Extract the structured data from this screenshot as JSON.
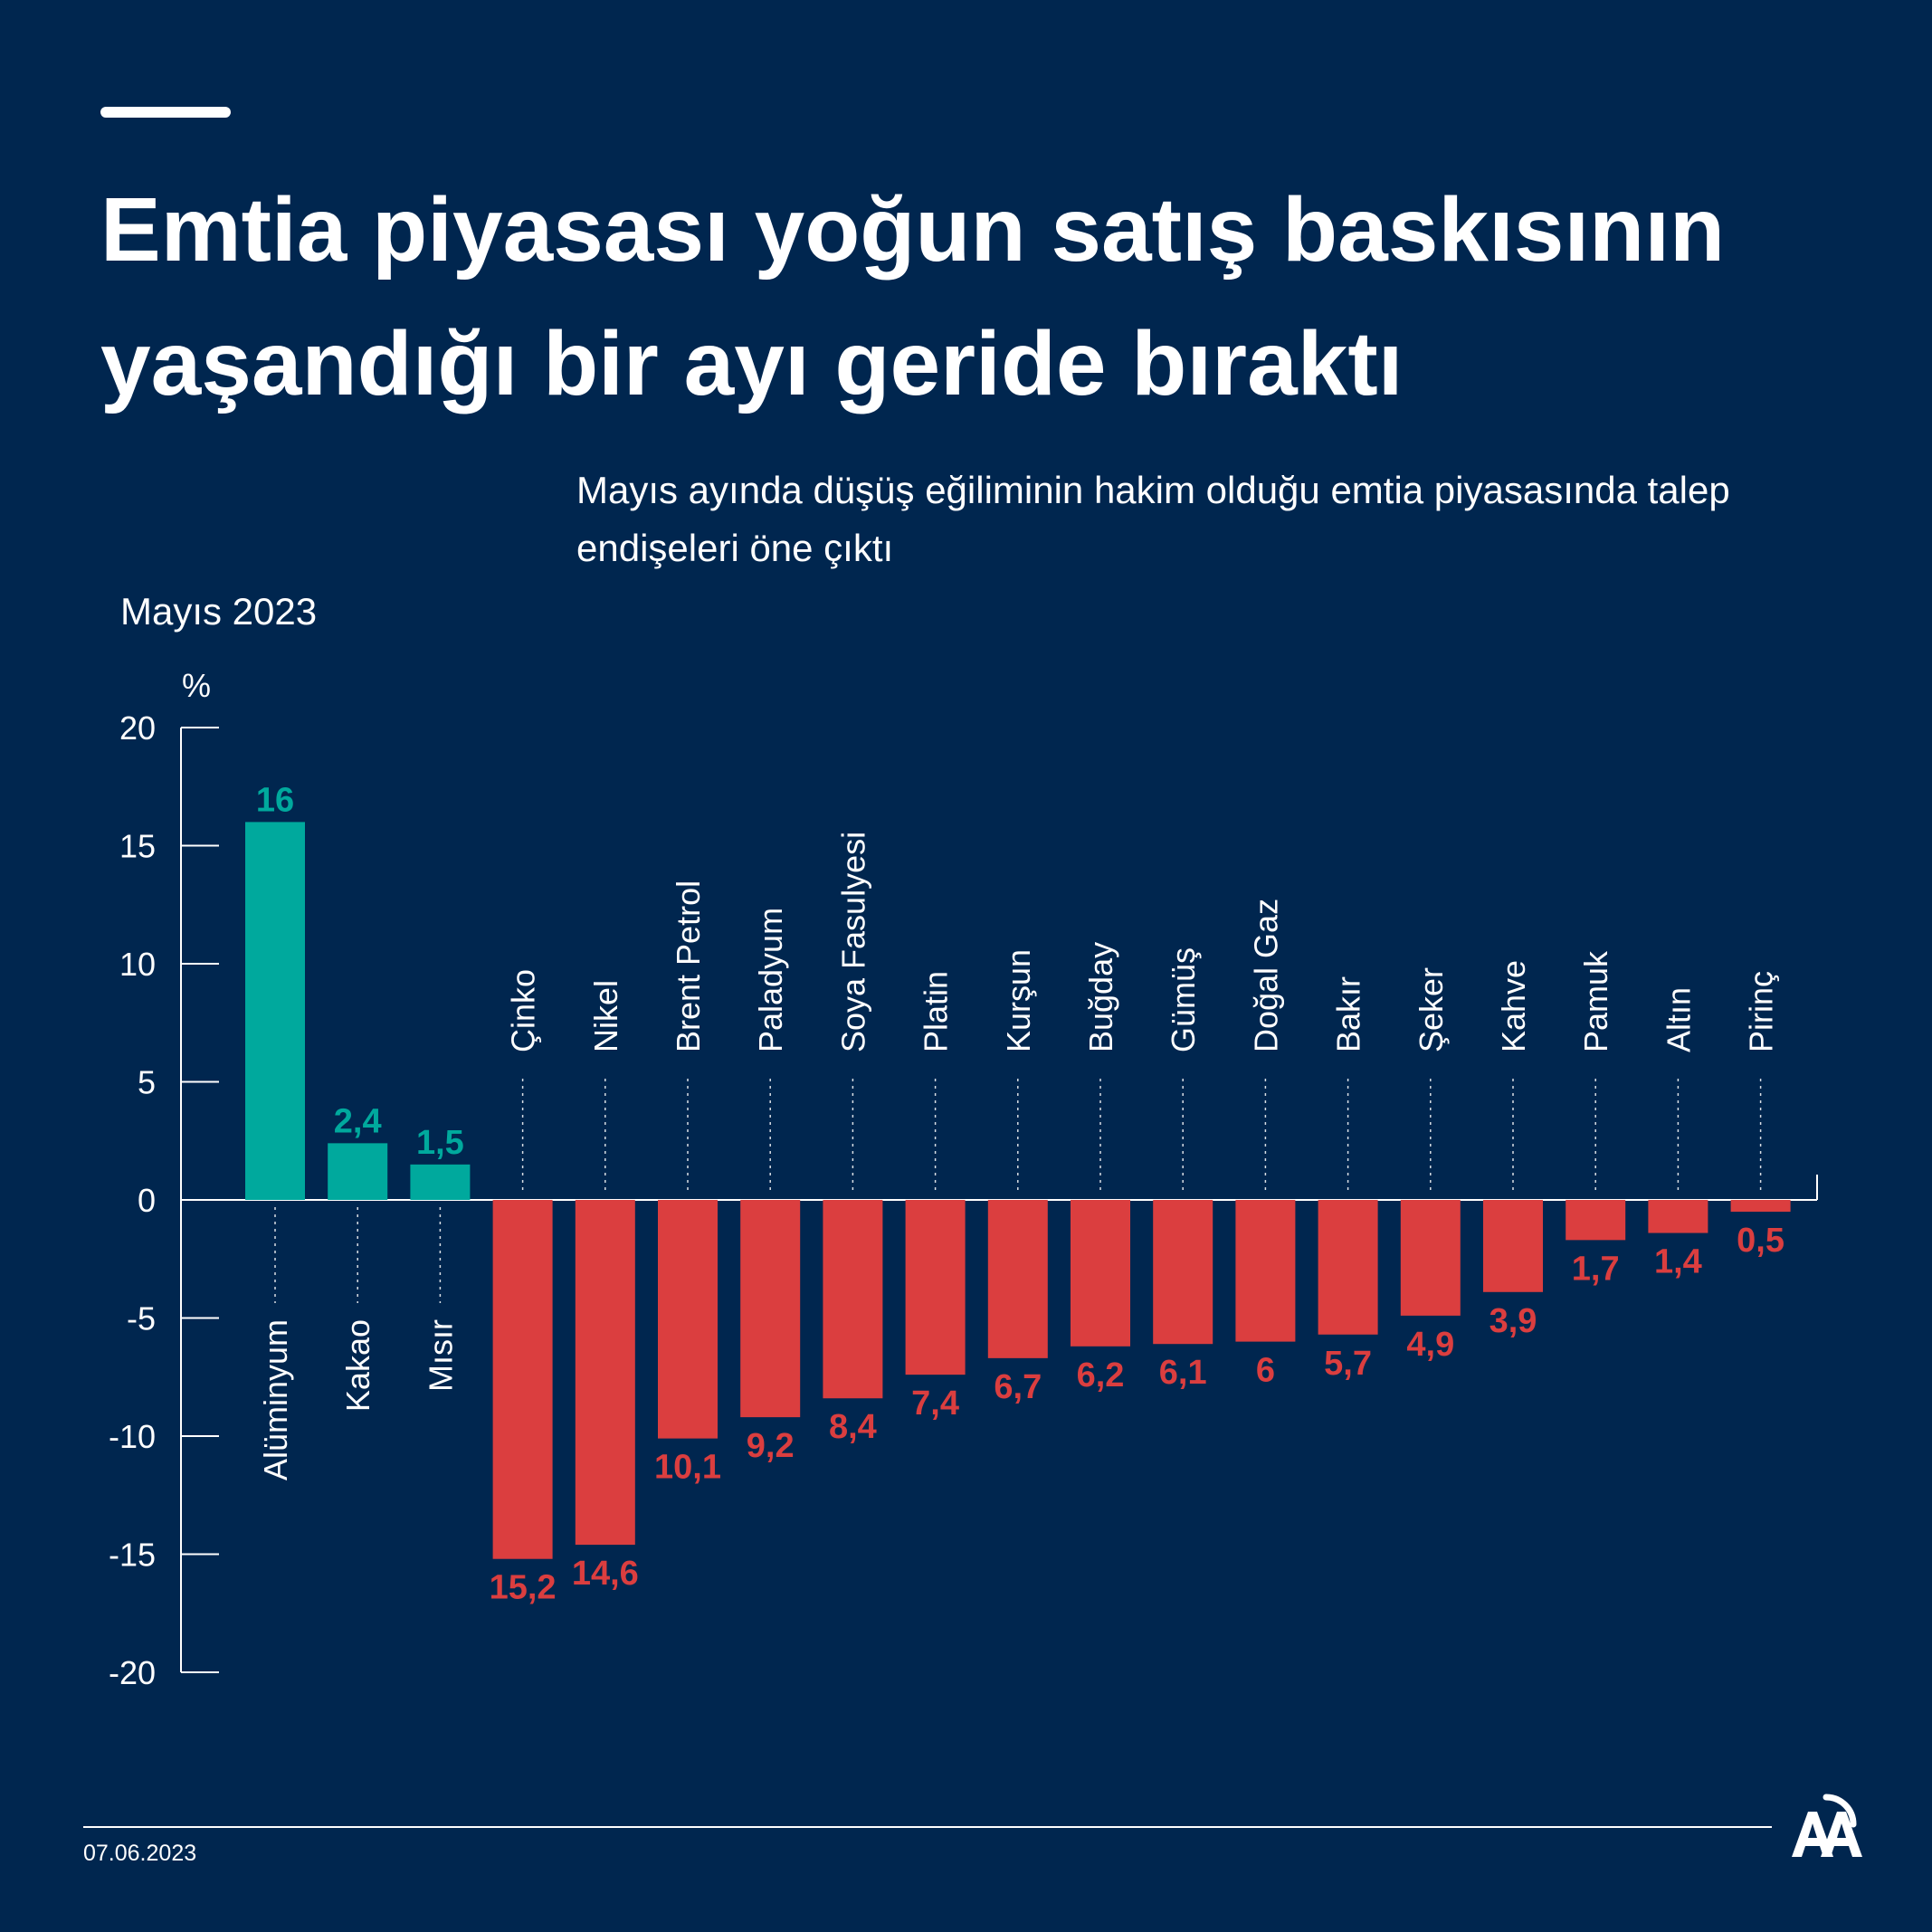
{
  "title": "Emtia piyasası yoğun satış baskısının yaşandığı bir ayı geride bıraktı",
  "subtitle": "Mayıs ayında düşüş eğiliminin hakim olduğu emtia piyasasında talep endişeleri öne çıktı",
  "footer": {
    "date": "07.06.2023"
  },
  "logo": {
    "icon": "aa-logo-icon",
    "text": "AA"
  },
  "colors": {
    "background": "#00264F",
    "positive": "#00A99D",
    "negative": "#DB3E3F",
    "text": "#FFFFFF"
  },
  "chart_data": {
    "type": "bar",
    "title": "",
    "period": "Mayıs 2023",
    "ylabel": "%",
    "xlabel": "",
    "ylim": [
      -20,
      20
    ],
    "yticks": [
      20,
      15,
      10,
      5,
      0,
      -5,
      -10,
      -15,
      -20
    ],
    "categories": [
      "Alüminyum",
      "Kakao",
      "Mısır",
      "Çinko",
      "Nikel",
      "Brent Petrol",
      "Paladyum",
      "Soya Fasulyesi",
      "Platin",
      "Kurşun",
      "Buğday",
      "Gümüş",
      "Doğal Gaz",
      "Bakır",
      "Şeker",
      "Kahve",
      "Pamuk",
      "Altın",
      "Pirinç"
    ],
    "values": [
      16,
      2.4,
      1.5,
      -15.2,
      -14.6,
      -10.1,
      -9.2,
      -8.4,
      -7.4,
      -6.7,
      -6.2,
      -6.1,
      -6,
      -5.7,
      -4.9,
      -3.9,
      -1.7,
      -1.4,
      -0.5
    ],
    "value_labels": [
      "16",
      "2,4",
      "1,5",
      "15,2",
      "14,6",
      "10,1",
      "9,2",
      "8,4",
      "7,4",
      "6,7",
      "6,2",
      "6,1",
      "6",
      "5,7",
      "4,9",
      "3,9",
      "1,7",
      "1,4",
      "0,5"
    ],
    "grid": false,
    "legend": "none"
  }
}
